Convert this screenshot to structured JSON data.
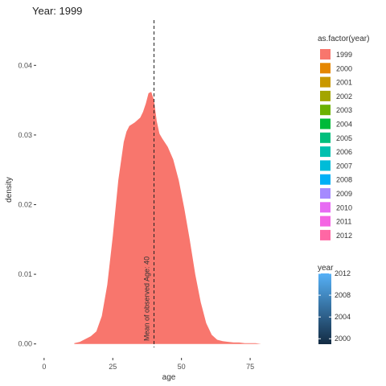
{
  "chart_data": {
    "type": "area",
    "title": "Year: 1999",
    "xlabel": "age",
    "ylabel": "density",
    "xlim": [
      -2,
      82
    ],
    "ylim": [
      -0.0005,
      0.0465
    ],
    "x_ticks": [
      0,
      25,
      50,
      75
    ],
    "y_ticks": [
      0.0,
      0.01,
      0.02,
      0.03,
      0.04
    ],
    "y_tick_labels": [
      "0.00",
      "0.01",
      "0.02",
      "0.03",
      "0.04"
    ],
    "grid": false,
    "series": [
      {
        "name": "1999",
        "color": "#F8766D",
        "x": [
          11,
          13,
          15,
          17,
          19,
          21,
          23,
          25,
          27,
          29,
          30,
          31,
          33,
          35,
          36,
          37,
          38,
          39,
          40,
          41,
          42,
          43,
          45,
          47,
          49,
          51,
          53,
          55,
          57,
          59,
          61,
          63,
          65,
          67,
          69,
          71,
          73,
          75,
          77,
          79
        ],
        "y": [
          0.0001,
          0.0003,
          0.0007,
          0.0011,
          0.0018,
          0.004,
          0.0085,
          0.0155,
          0.0235,
          0.029,
          0.0305,
          0.0313,
          0.0318,
          0.0325,
          0.0333,
          0.0345,
          0.036,
          0.0362,
          0.035,
          0.032,
          0.0302,
          0.0295,
          0.0283,
          0.0265,
          0.0235,
          0.0195,
          0.015,
          0.01,
          0.006,
          0.003,
          0.0013,
          0.0006,
          0.0004,
          0.0003,
          0.0002,
          0.0002,
          0.0001,
          0.0001,
          0.0001,
          0.0
        ]
      }
    ],
    "vline": {
      "x": 40,
      "label": "Mean of observed Age: 40"
    },
    "legend": {
      "position": "right",
      "title": "as.factor(year)",
      "items": [
        {
          "label": "1999",
          "color": "#F8766D"
        },
        {
          "label": "2000",
          "color": "#E58700"
        },
        {
          "label": "2001",
          "color": "#C99800"
        },
        {
          "label": "2002",
          "color": "#A3A500"
        },
        {
          "label": "2003",
          "color": "#6BB100"
        },
        {
          "label": "2004",
          "color": "#00BA38"
        },
        {
          "label": "2005",
          "color": "#00BF7D"
        },
        {
          "label": "2006",
          "color": "#00C0AF"
        },
        {
          "label": "2007",
          "color": "#00BCD8"
        },
        {
          "label": "2008",
          "color": "#00B0F6"
        },
        {
          "label": "2009",
          "color": "#A58AFF"
        },
        {
          "label": "2010",
          "color": "#E76BF3"
        },
        {
          "label": "2011",
          "color": "#F564E3"
        },
        {
          "label": "2012",
          "color": "#FF67A4"
        }
      ]
    },
    "colorbar": {
      "title": "year",
      "min": 1999,
      "max": 2012,
      "ticks": [
        2000,
        2004,
        2008,
        2012
      ],
      "color_low": "#132B43",
      "color_high": "#56B1F7"
    }
  }
}
